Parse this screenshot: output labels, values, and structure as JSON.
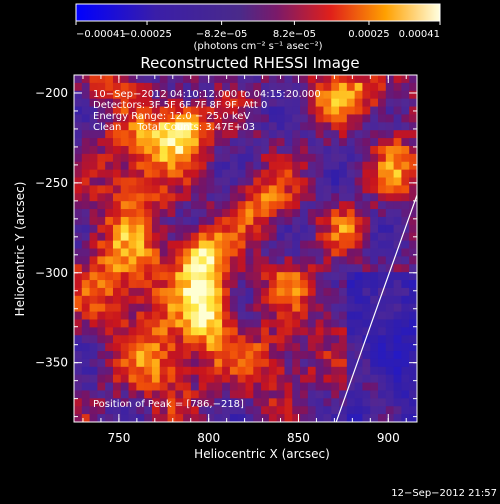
{
  "chart_data": {
    "type": "heatmap",
    "title": "Reconstructed RHESSI Image",
    "xlabel": "Heliocentric X (arcsec)",
    "ylabel": "Heliocentric Y (arcsec)",
    "xlim": [
      725,
      916
    ],
    "ylim": [
      -383,
      -190
    ],
    "x_ticks": [
      750,
      800,
      850,
      900
    ],
    "y_ticks": [
      -200,
      -250,
      -300,
      -350
    ],
    "x_tick_labels": [
      "750",
      "800",
      "850",
      "900"
    ],
    "y_tick_labels": [
      "−200",
      "−250",
      "−300",
      "−350"
    ],
    "colorbar": {
      "min": -0.00041,
      "max": 0.00041,
      "ticks": [
        -0.00041,
        -0.00025,
        -8.2e-05,
        8.2e-05,
        0.00025,
        0.00041
      ],
      "tick_labels": [
        "−0.00041",
        "−0.00025",
        "−8.2e−05",
        "8.2e−05",
        "0.00025",
        "0.00041"
      ],
      "units": "(photons cm⁻² s⁻¹ asec⁻²)"
    },
    "annotations": [
      "10−Sep−2012 04:10:12.000 to 04:15:20.000",
      "Detectors: 3F 5F 6F 7F 8F 9F, Att 0",
      "Energy Range: 12.0 − 25.0 keV",
      "Clean     Total Counts: 3.47E+03"
    ],
    "peak_label": "Position of Peak = [786,−218]",
    "timestamp": "12−Sep−2012 21:57",
    "sources": [
      {
        "x": 800,
        "y": -318,
        "amp": 1.0,
        "sx": 10,
        "sy": 18
      },
      {
        "x": 795,
        "y": -290,
        "amp": 0.7,
        "sx": 10,
        "sy": 10
      },
      {
        "x": 786,
        "y": -218,
        "amp": 0.85,
        "sx": 10,
        "sy": 10
      },
      {
        "x": 770,
        "y": -228,
        "amp": 0.55,
        "sx": 16,
        "sy": 10
      },
      {
        "x": 752,
        "y": -300,
        "amp": 0.6,
        "sx": 18,
        "sy": 24
      },
      {
        "x": 760,
        "y": -250,
        "amp": 0.5,
        "sx": 12,
        "sy": 14
      },
      {
        "x": 775,
        "y": -350,
        "amp": 0.55,
        "sx": 14,
        "sy": 18
      },
      {
        "x": 830,
        "y": -262,
        "amp": 0.55,
        "sx": 12,
        "sy": 12
      },
      {
        "x": 845,
        "y": -305,
        "amp": 0.45,
        "sx": 10,
        "sy": 10
      },
      {
        "x": 835,
        "y": -350,
        "amp": 0.5,
        "sx": 14,
        "sy": 14
      },
      {
        "x": 880,
        "y": -200,
        "amp": 0.6,
        "sx": 18,
        "sy": 10
      },
      {
        "x": 905,
        "y": -240,
        "amp": 0.45,
        "sx": 10,
        "sy": 14
      },
      {
        "x": 878,
        "y": -275,
        "amp": 0.4,
        "sx": 8,
        "sy": 10
      },
      {
        "x": 890,
        "y": -360,
        "amp": 0.4,
        "sx": 10,
        "sy": 12
      },
      {
        "x": 870,
        "y": -320,
        "amp": 0.3,
        "sx": 10,
        "sy": 10
      },
      {
        "x": 740,
        "y": -195,
        "amp": 0.35,
        "sx": 12,
        "sy": 10
      }
    ],
    "limb_line": [
      [
        917,
        -254
      ],
      [
        871,
        -383
      ]
    ]
  }
}
